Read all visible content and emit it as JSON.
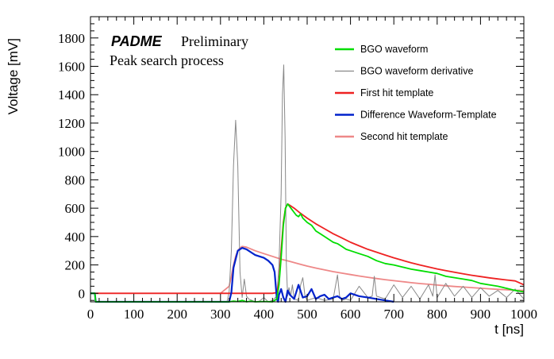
{
  "chart_data": {
    "type": "line",
    "brand": "PADME",
    "status": "Preliminary",
    "subtitle": "Peak search process",
    "xlabel": "t [ns]",
    "ylabel": "Voltage [mV]",
    "xlim": [
      0,
      1000
    ],
    "ylim": [
      -60,
      1950
    ],
    "x_ticks": [
      0,
      100,
      200,
      300,
      400,
      500,
      600,
      700,
      800,
      900,
      1000
    ],
    "y_ticks": [
      0,
      200,
      400,
      600,
      800,
      1000,
      1200,
      1400,
      1600,
      1800
    ],
    "grid": false,
    "legend_position": "top-right",
    "series": [
      {
        "name": "BGO waveform",
        "color": "#00dd00",
        "x": [
          0,
          10,
          12,
          20,
          100,
          200,
          300,
          320,
          330,
          340,
          350,
          360,
          370,
          380,
          400,
          420,
          430,
          435,
          440,
          445,
          450,
          455,
          460,
          465,
          470,
          475,
          480,
          485,
          490,
          500,
          510,
          520,
          530,
          540,
          550,
          560,
          570,
          580,
          590,
          600,
          620,
          640,
          660,
          680,
          700,
          720,
          740,
          760,
          780,
          800,
          820,
          840,
          860,
          880,
          900,
          920,
          940,
          960,
          980,
          1000
        ],
        "y": [
          0,
          0,
          -60,
          -60,
          -60,
          -60,
          -60,
          -60,
          -55,
          -58,
          -50,
          -60,
          -55,
          -60,
          -58,
          -60,
          -40,
          60,
          250,
          480,
          600,
          630,
          610,
          590,
          570,
          550,
          540,
          560,
          530,
          500,
          480,
          440,
          420,
          400,
          380,
          360,
          350,
          330,
          310,
          300,
          280,
          260,
          230,
          210,
          200,
          185,
          170,
          160,
          150,
          140,
          120,
          110,
          100,
          90,
          70,
          60,
          50,
          35,
          20,
          10
        ]
      },
      {
        "name": "BGO waveform derivative",
        "color": "#888888",
        "x": [
          0,
          300,
          315,
          320,
          325,
          330,
          335,
          340,
          345,
          350,
          355,
          360,
          365,
          380,
          390,
          400,
          410,
          420,
          430,
          435,
          440,
          443,
          446,
          449,
          452,
          455,
          458,
          462,
          466,
          470,
          480,
          485,
          490,
          495,
          500,
          520,
          540,
          560,
          570,
          575,
          580,
          590,
          600,
          620,
          640,
          650,
          655,
          660,
          680,
          700,
          720,
          740,
          760,
          780,
          790,
          795,
          800,
          820,
          840,
          860,
          880,
          900,
          920,
          940,
          960,
          980,
          1000
        ],
        "y": [
          -60,
          -60,
          -60,
          10,
          300,
          900,
          1220,
          900,
          150,
          -30,
          100,
          -20,
          -40,
          -60,
          -55,
          -30,
          -60,
          -50,
          -20,
          200,
          700,
          1400,
          1610,
          1100,
          200,
          -20,
          40,
          -20,
          60,
          -40,
          -50,
          60,
          110,
          -20,
          -50,
          -30,
          -50,
          -40,
          130,
          -20,
          -50,
          -40,
          -50,
          50,
          -30,
          -20,
          120,
          -20,
          -40,
          60,
          -30,
          50,
          -40,
          60,
          -20,
          130,
          -30,
          70,
          -20,
          50,
          -30,
          40,
          -20,
          20,
          -30,
          30,
          -40
        ]
      },
      {
        "name": "First hit template",
        "color": "#ee2222",
        "x": [
          0,
          300,
          420,
          430,
          435,
          440,
          445,
          450,
          455,
          460,
          470,
          480,
          500,
          520,
          540,
          560,
          580,
          600,
          620,
          640,
          660,
          680,
          700,
          720,
          740,
          760,
          780,
          800,
          820,
          840,
          860,
          880,
          900,
          920,
          940,
          960,
          980,
          1000
        ],
        "y": [
          0,
          0,
          0,
          5,
          80,
          300,
          500,
          600,
          630,
          620,
          600,
          575,
          530,
          490,
          455,
          420,
          390,
          360,
          335,
          310,
          290,
          270,
          250,
          232,
          215,
          200,
          186,
          172,
          160,
          148,
          137,
          127,
          118,
          109,
          101,
          94,
          87,
          60
        ]
      },
      {
        "name": "Difference Waveform-Template",
        "color": "#0022cc",
        "x": [
          0,
          10,
          12,
          20,
          100,
          200,
          300,
          320,
          325,
          330,
          340,
          350,
          360,
          370,
          380,
          390,
          400,
          410,
          420,
          425,
          430,
          433,
          435,
          440,
          445,
          450,
          455,
          460,
          470,
          480,
          490,
          500,
          510,
          520,
          530,
          540,
          550,
          560,
          570,
          580,
          590,
          600,
          620,
          640,
          660,
          680,
          700
        ],
        "y": [
          0,
          0,
          -60,
          -60,
          -60,
          -60,
          -60,
          -60,
          5,
          180,
          300,
          320,
          310,
          290,
          270,
          260,
          250,
          230,
          200,
          150,
          -40,
          -60,
          -10,
          30,
          -30,
          -60,
          20,
          -10,
          -40,
          60,
          -30,
          -20,
          30,
          -40,
          -20,
          -10,
          -40,
          -30,
          -20,
          -40,
          -30,
          0,
          -20,
          -30,
          -40,
          -50,
          -60
        ]
      },
      {
        "name": "Second hit template",
        "color": "#ee8888",
        "x": [
          300,
          320,
          325,
          330,
          335,
          340,
          345,
          350,
          360,
          380,
          400,
          420,
          440,
          460,
          480,
          500,
          520,
          540,
          560,
          580,
          600,
          620,
          640,
          660,
          680,
          700,
          720,
          740,
          760,
          780,
          800,
          820,
          840,
          860,
          880,
          900,
          920,
          940,
          960,
          980,
          1000
        ],
        "y": [
          0,
          50,
          120,
          200,
          260,
          300,
          320,
          330,
          325,
          300,
          280,
          260,
          240,
          225,
          208,
          192,
          178,
          165,
          153,
          142,
          132,
          122,
          113,
          104,
          96,
          89,
          82,
          75,
          69,
          64,
          58,
          53,
          48,
          44,
          40,
          36,
          32,
          28,
          25,
          22,
          20
        ]
      }
    ]
  }
}
